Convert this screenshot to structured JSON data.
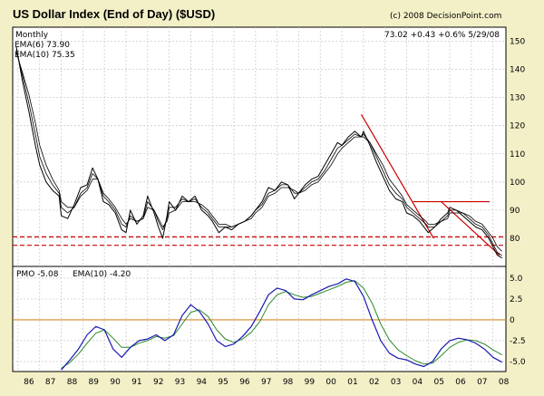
{
  "chart_data": [
    {
      "type": "line",
      "title": "US Dollar Index (End of Day) ($USD)",
      "copyright": "(c) 2008 DecisionPoint.com",
      "quote": "73.02 +0.43 +0.6% 5/29/08",
      "periodicity": "Monthly",
      "legend": [
        {
          "label": "EMA(6) 73.90",
          "color": "#2a8a2a"
        },
        {
          "label": "EMA(10) 75.35",
          "color": "#8a2a8a"
        }
      ],
      "x_ticks": [
        "86",
        "87",
        "88",
        "89",
        "90",
        "91",
        "92",
        "93",
        "94",
        "95",
        "96",
        "97",
        "98",
        "99",
        "00",
        "01",
        "02",
        "03",
        "04",
        "05",
        "06",
        "07",
        "08"
      ],
      "y_ticks": [
        "150",
        "140",
        "130",
        "120",
        "110",
        "100",
        "90",
        "80"
      ],
      "ylim": [
        70,
        155
      ],
      "xlim": [
        1985.75,
        2008.6
      ],
      "price_x": [
        1985.92,
        1986.2,
        1986.5,
        1986.8,
        1987.0,
        1987.3,
        1987.6,
        1987.9,
        1988.0,
        1988.3,
        1988.6,
        1988.9,
        1989.2,
        1989.45,
        1989.7,
        1989.95,
        1990.2,
        1990.5,
        1990.8,
        1991.0,
        1991.2,
        1991.5,
        1991.8,
        1992.0,
        1992.3,
        1992.5,
        1992.7,
        1992.9,
        1993.0,
        1993.3,
        1993.6,
        1993.9,
        1994.2,
        1994.5,
        1994.8,
        1995.0,
        1995.3,
        1995.6,
        1995.9,
        1996.2,
        1996.5,
        1996.8,
        1997.0,
        1997.3,
        1997.6,
        1997.9,
        1998.2,
        1998.5,
        1998.8,
        1999.0,
        1999.3,
        1999.6,
        1999.9,
        2000.2,
        2000.5,
        2000.8,
        2001.0,
        2001.3,
        2001.6,
        2001.9,
        2002.0,
        2002.3,
        2002.6,
        2002.9,
        2003.2,
        2003.5,
        2003.8,
        2004.0,
        2004.3,
        2004.6,
        2004.9,
        2005.0,
        2005.3,
        2005.6,
        2005.9,
        2006.0,
        2006.3,
        2006.6,
        2006.9,
        2007.2,
        2007.5,
        2007.8,
        2008.0,
        2008.2,
        2008.42
      ],
      "price": [
        148,
        136,
        125,
        113,
        106,
        100,
        97,
        95,
        88,
        87,
        92,
        98,
        99,
        105,
        101,
        93,
        92,
        89,
        83,
        82,
        90,
        85,
        88,
        95,
        89,
        84,
        80,
        88,
        93,
        90,
        95,
        93,
        95,
        90,
        88,
        86,
        82,
        84,
        83,
        85,
        86,
        88,
        90,
        93,
        98,
        97,
        100,
        99,
        94,
        96,
        99,
        101,
        102,
        106,
        110,
        114,
        113,
        116,
        118,
        116,
        118,
        113,
        107,
        102,
        97,
        94,
        93,
        89,
        88,
        86,
        83,
        82,
        84,
        87,
        89,
        91,
        90,
        88,
        86,
        84,
        83,
        80,
        77,
        74,
        73
      ],
      "ema_short": [
        147,
        138,
        128,
        117,
        109,
        103,
        99,
        96,
        91,
        89,
        91,
        96,
        98,
        103,
        101,
        95,
        93,
        90,
        85,
        84,
        88,
        86,
        87,
        93,
        90,
        86,
        83,
        87,
        91,
        91,
        94,
        93,
        94,
        91,
        89,
        87,
        84,
        84,
        84,
        85,
        86,
        88,
        90,
        92,
        96,
        97,
        99,
        99,
        96,
        96,
        98,
        100,
        101,
        104,
        108,
        112,
        113,
        115,
        117,
        116,
        117,
        114,
        109,
        104,
        99,
        96,
        94,
        91,
        89,
        87,
        85,
        84,
        84,
        86,
        88,
        90,
        90,
        89,
        87,
        85,
        84,
        81,
        78,
        75,
        73.9
      ],
      "ema_long": [
        146,
        139,
        131,
        121,
        113,
        106,
        101,
        97,
        93,
        91,
        91,
        95,
        97,
        101,
        101,
        96,
        94,
        91,
        87,
        85,
        87,
        86,
        87,
        91,
        90,
        87,
        84,
        86,
        89,
        90,
        93,
        93,
        93,
        92,
        90,
        88,
        85,
        85,
        84,
        85,
        86,
        87,
        89,
        91,
        95,
        96,
        98,
        98,
        97,
        96,
        97,
        99,
        100,
        103,
        106,
        110,
        112,
        114,
        116,
        116,
        116,
        114,
        110,
        106,
        101,
        98,
        95,
        92,
        90,
        88,
        86,
        85,
        85,
        86,
        87,
        89,
        89,
        89,
        88,
        86,
        85,
        82,
        80,
        77,
        75.35
      ],
      "annotations": {
        "trend_line_1": {
          "from": [
            2001.9,
            124
          ],
          "to": [
            2005.25,
            80
          ],
          "color": "#cc0000"
        },
        "trend_line_2": {
          "from": [
            2005.6,
            93
          ],
          "to": [
            2008.3,
            74
          ],
          "color": "#cc0000"
        },
        "resistance": {
          "from": [
            2004.3,
            93
          ],
          "to": [
            2007.85,
            93
          ],
          "color": "#cc0000"
        },
        "support_dashed": [
          {
            "y": 80.5,
            "color": "#cc0000"
          },
          {
            "y": 77.5,
            "color": "#cc0000"
          }
        ]
      },
      "grid": true,
      "legend_position": "top-left"
    },
    {
      "type": "line",
      "title": "",
      "legend": [
        {
          "label": "PMO -5.08",
          "color": "#1a1ab4"
        },
        {
          "label": "EMA(10) -4.20",
          "color": "#2a8a2a"
        }
      ],
      "y_ticks": [
        "5.0",
        "2.5",
        "0",
        "-2.5",
        "-5.0"
      ],
      "ylim": [
        -6.2,
        6.4
      ],
      "xlim": [
        1985.75,
        2008.6
      ],
      "pmo_x": [
        1988.0,
        1988.4,
        1988.8,
        1989.2,
        1989.6,
        1990.0,
        1990.4,
        1990.8,
        1991.2,
        1991.6,
        1992.0,
        1992.4,
        1992.8,
        1993.2,
        1993.6,
        1994.0,
        1994.4,
        1994.8,
        1995.2,
        1995.6,
        1996.0,
        1996.4,
        1996.8,
        1997.2,
        1997.6,
        1998.0,
        1998.4,
        1998.8,
        1999.2,
        1999.6,
        2000.0,
        2000.4,
        2000.8,
        2001.2,
        2001.6,
        2002.0,
        2002.4,
        2002.8,
        2003.2,
        2003.6,
        2004.0,
        2004.4,
        2004.8,
        2005.2,
        2005.6,
        2006.0,
        2006.4,
        2006.8,
        2007.2,
        2007.6,
        2008.0,
        2008.42
      ],
      "pmo": [
        -6.0,
        -4.8,
        -3.5,
        -1.8,
        -0.8,
        -1.2,
        -3.5,
        -4.5,
        -3.3,
        -2.5,
        -2.3,
        -1.8,
        -2.5,
        -1.8,
        0.5,
        1.8,
        1.0,
        -0.5,
        -2.5,
        -3.2,
        -2.9,
        -2.0,
        -0.8,
        1.0,
        3.0,
        3.8,
        3.5,
        2.5,
        2.4,
        3.0,
        3.5,
        4.0,
        4.3,
        4.9,
        4.6,
        2.8,
        0.0,
        -2.5,
        -4.0,
        -4.6,
        -4.8,
        -5.3,
        -5.6,
        -5.0,
        -3.5,
        -2.5,
        -2.2,
        -2.4,
        -2.8,
        -3.5,
        -4.5,
        -5.08
      ],
      "pmo_ema": [
        -5.8,
        -5.1,
        -4.1,
        -2.8,
        -1.6,
        -1.2,
        -2.2,
        -3.3,
        -3.3,
        -2.8,
        -2.5,
        -2.0,
        -2.2,
        -1.9,
        -0.5,
        0.9,
        1.2,
        0.4,
        -1.2,
        -2.3,
        -2.7,
        -2.3,
        -1.5,
        -0.2,
        1.8,
        3.0,
        3.4,
        3.0,
        2.7,
        2.8,
        3.2,
        3.6,
        4.0,
        4.5,
        4.7,
        3.8,
        2.0,
        -0.5,
        -2.4,
        -3.6,
        -4.3,
        -4.9,
        -5.3,
        -5.2,
        -4.3,
        -3.3,
        -2.7,
        -2.4,
        -2.5,
        -2.9,
        -3.6,
        -4.2
      ],
      "zero_line_color": "#d48a2a",
      "grid": true,
      "legend_position": "top-left"
    }
  ]
}
